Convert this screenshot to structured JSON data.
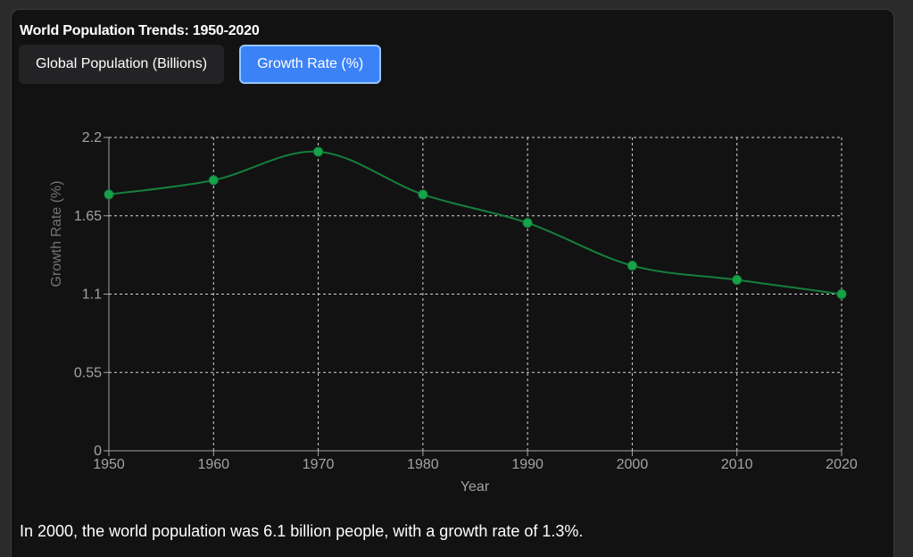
{
  "page": {
    "title": "World Population Trends: 1950-2020",
    "summary": "In 2000, the world population was 6.1 billion people, with a growth rate of 1.3%."
  },
  "tabs": [
    {
      "label": "Global Population (Billions)",
      "active": false
    },
    {
      "label": "Growth Rate (%)",
      "active": true
    }
  ],
  "colors": {
    "line": "#15803d",
    "point": "#16a34a",
    "grid": "#d4d4d4",
    "axis_text": "#a3a3a3",
    "active_tab": "#3b82f6"
  },
  "chart_data": {
    "type": "line",
    "xlabel": "Year",
    "ylabel": "Growth Rate (%)",
    "x": [
      1950,
      1960,
      1970,
      1980,
      1990,
      2000,
      2010,
      2020
    ],
    "series": [
      {
        "values": [
          1.8,
          1.9,
          2.1,
          1.8,
          1.6,
          1.3,
          1.2,
          1.1
        ]
      }
    ],
    "ylim": [
      0,
      2.2
    ],
    "yticks": [
      "0",
      "0.55",
      "1.1",
      "1.65",
      "2.2"
    ],
    "xticks": [
      "1950",
      "1960",
      "1970",
      "1980",
      "1990",
      "2000",
      "2010",
      "2020"
    ],
    "grid": true,
    "legend": "none"
  }
}
